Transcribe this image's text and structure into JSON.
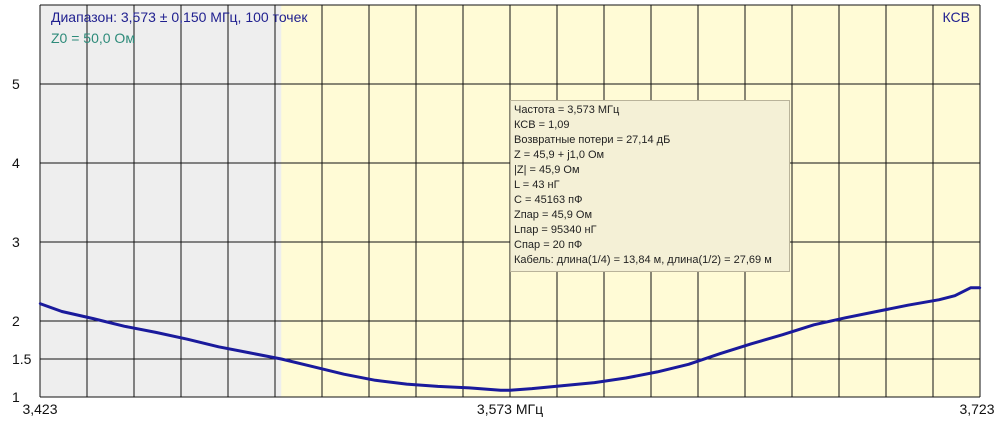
{
  "header": {
    "range": "Диапазон: 3,573 ± 0,150 МГц, 100 точек",
    "z0": "Z0 = 50,0 Ом",
    "mode": "КСВ"
  },
  "info_box": [
    "Частота = 3,573 МГц",
    "КСВ = 1,09",
    "Возвратные потери = 27,14 дБ",
    "Z = 45,9 + j1,0 Ом",
    "|Z| = 45,9 Ом",
    "L = 43 нГ",
    "C = 45163 пФ",
    "Zпар = 45,9 Ом",
    "Lпар = 95340 нГ",
    "Cпар = 20 пФ",
    "Кабель: длина(1/4) = 13,84 м, длина(1/2) = 27,69 м"
  ],
  "colors": {
    "trace": "#1a1a9c",
    "plot_bg": "#fffbd6",
    "shade_bg": "#eeeeee",
    "grid": "#111111"
  },
  "chart_data": {
    "type": "line",
    "title": "",
    "xlabel": "",
    "ylabel": "КСВ",
    "xlim": [
      3.423,
      3.723
    ],
    "ylim": [
      1,
      6
    ],
    "y_ticks": [
      {
        "value": 1,
        "label": "1"
      },
      {
        "value": 1.5,
        "label": "1.5"
      },
      {
        "value": 2,
        "label": "2"
      },
      {
        "value": 3,
        "label": "3"
      },
      {
        "value": 4,
        "label": "4"
      },
      {
        "value": 5,
        "label": "5"
      }
    ],
    "x_ticks": [
      {
        "value": 3.423,
        "label": "3,423"
      },
      {
        "value": 3.573,
        "label": "3,573 МГц"
      },
      {
        "value": 3.723,
        "label": "3,723"
      }
    ],
    "grid": true,
    "shaded_region": [
      3.423,
      3.5
    ],
    "series": [
      {
        "x": [
          3.423,
          3.43,
          3.44,
          3.45,
          3.46,
          3.47,
          3.48,
          3.49,
          3.5,
          3.51,
          3.52,
          3.53,
          3.54,
          3.55,
          3.56,
          3.57,
          3.573,
          3.58,
          3.59,
          3.6,
          3.61,
          3.62,
          3.63,
          3.64,
          3.65,
          3.66,
          3.67,
          3.68,
          3.69,
          3.7,
          3.71,
          3.715,
          3.72,
          3.723
        ],
        "y": [
          2.22,
          2.12,
          2.03,
          1.93,
          1.85,
          1.76,
          1.66,
          1.58,
          1.5,
          1.4,
          1.3,
          1.22,
          1.17,
          1.14,
          1.12,
          1.09,
          1.09,
          1.11,
          1.15,
          1.19,
          1.25,
          1.33,
          1.43,
          1.57,
          1.7,
          1.82,
          1.95,
          2.04,
          2.12,
          2.2,
          2.27,
          2.32,
          2.42,
          2.42
        ]
      }
    ]
  }
}
